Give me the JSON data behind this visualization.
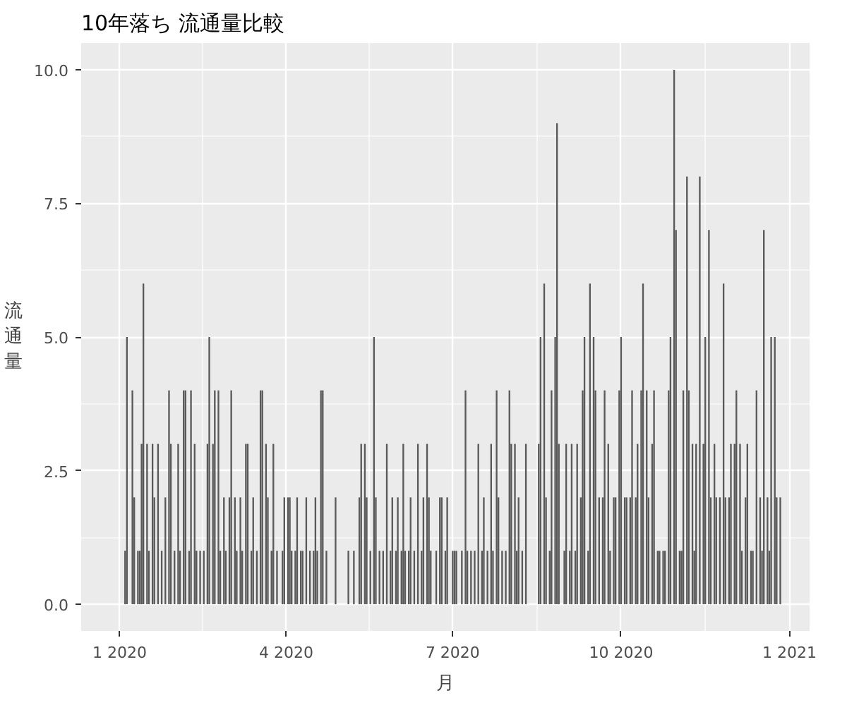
{
  "chart_data": {
    "type": "bar",
    "title": "10年落ち 流通量比較",
    "xlabel": "月",
    "ylabel": "流通量",
    "x": [
      "2020-01-04",
      "2020-01-05",
      "2020-01-08",
      "2020-01-09",
      "2020-01-11",
      "2020-01-12",
      "2020-01-13",
      "2020-01-14",
      "2020-01-16",
      "2020-01-17",
      "2020-01-19",
      "2020-01-20",
      "2020-01-22",
      "2020-01-24",
      "2020-01-26",
      "2020-01-28",
      "2020-01-29",
      "2020-01-31",
      "2020-02-02",
      "2020-02-03",
      "2020-02-05",
      "2020-02-06",
      "2020-02-08",
      "2020-02-09",
      "2020-02-11",
      "2020-02-12",
      "2020-02-14",
      "2020-02-16",
      "2020-02-18",
      "2020-02-19",
      "2020-02-21",
      "2020-02-22",
      "2020-02-24",
      "2020-02-25",
      "2020-02-27",
      "2020-02-28",
      "2020-03-01",
      "2020-03-02",
      "2020-03-04",
      "2020-03-05",
      "2020-03-07",
      "2020-03-08",
      "2020-03-10",
      "2020-03-11",
      "2020-03-13",
      "2020-03-14",
      "2020-03-16",
      "2020-03-18",
      "2020-03-19",
      "2020-03-21",
      "2020-03-22",
      "2020-03-24",
      "2020-03-25",
      "2020-03-27",
      "2020-03-30",
      "2020-03-31",
      "2020-04-02",
      "2020-04-03",
      "2020-04-04",
      "2020-04-06",
      "2020-04-07",
      "2020-04-09",
      "2020-04-10",
      "2020-04-12",
      "2020-04-14",
      "2020-04-16",
      "2020-04-17",
      "2020-04-18",
      "2020-04-20",
      "2020-04-21",
      "2020-04-23",
      "2020-04-28",
      "2020-05-05",
      "2020-05-08",
      "2020-05-11",
      "2020-05-12",
      "2020-05-14",
      "2020-05-15",
      "2020-05-17",
      "2020-05-19",
      "2020-05-20",
      "2020-05-22",
      "2020-05-24",
      "2020-05-26",
      "2020-05-28",
      "2020-05-29",
      "2020-05-31",
      "2020-06-01",
      "2020-06-03",
      "2020-06-04",
      "2020-06-05",
      "2020-06-07",
      "2020-06-08",
      "2020-06-10",
      "2020-06-12",
      "2020-06-14",
      "2020-06-15",
      "2020-06-17",
      "2020-06-18",
      "2020-06-19",
      "2020-06-22",
      "2020-06-24",
      "2020-06-25",
      "2020-06-27",
      "2020-06-28",
      "2020-07-01",
      "2020-07-02",
      "2020-07-03",
      "2020-07-06",
      "2020-07-08",
      "2020-07-09",
      "2020-07-11",
      "2020-07-13",
      "2020-07-15",
      "2020-07-17",
      "2020-07-18",
      "2020-07-20",
      "2020-07-22",
      "2020-07-23",
      "2020-07-25",
      "2020-07-26",
      "2020-07-28",
      "2020-07-30",
      "2020-08-01",
      "2020-08-02",
      "2020-08-04",
      "2020-08-05",
      "2020-08-06",
      "2020-08-08",
      "2020-08-10",
      "2020-08-17",
      "2020-08-18",
      "2020-08-20",
      "2020-08-21",
      "2020-08-23",
      "2020-08-24",
      "2020-08-26",
      "2020-08-27",
      "2020-08-28",
      "2020-08-31",
      "2020-09-01",
      "2020-09-03",
      "2020-09-04",
      "2020-09-06",
      "2020-09-07",
      "2020-09-09",
      "2020-09-10",
      "2020-09-11",
      "2020-09-13",
      "2020-09-14",
      "2020-09-16",
      "2020-09-17",
      "2020-09-19",
      "2020-09-21",
      "2020-09-22",
      "2020-09-24",
      "2020-09-25",
      "2020-09-27",
      "2020-09-28",
      "2020-09-30",
      "2020-10-01",
      "2020-10-03",
      "2020-10-04",
      "2020-10-06",
      "2020-10-07",
      "2020-10-09",
      "2020-10-10",
      "2020-10-12",
      "2020-10-13",
      "2020-10-15",
      "2020-10-16",
      "2020-10-18",
      "2020-10-19",
      "2020-10-21",
      "2020-10-22",
      "2020-10-24",
      "2020-10-25",
      "2020-10-27",
      "2020-10-28",
      "2020-10-30",
      "2020-10-31",
      "2020-11-02",
      "2020-11-03",
      "2020-11-04",
      "2020-11-06",
      "2020-11-07",
      "2020-11-09",
      "2020-11-10",
      "2020-11-11",
      "2020-11-13",
      "2020-11-15",
      "2020-11-16",
      "2020-11-18",
      "2020-11-19",
      "2020-11-21",
      "2020-11-22",
      "2020-11-24",
      "2020-11-26",
      "2020-11-27",
      "2020-11-29",
      "2020-11-30",
      "2020-12-02",
      "2020-12-03",
      "2020-12-05",
      "2020-12-06",
      "2020-12-08",
      "2020-12-09",
      "2020-12-11",
      "2020-12-12",
      "2020-12-14",
      "2020-12-16",
      "2020-12-17",
      "2020-12-18",
      "2020-12-20",
      "2020-12-21",
      "2020-12-22",
      "2020-12-24",
      "2020-12-25",
      "2020-12-27"
    ],
    "values": [
      1,
      5,
      4,
      2,
      1,
      1,
      3,
      6,
      3,
      1,
      3,
      2,
      3,
      1,
      2,
      4,
      3,
      1,
      3,
      1,
      4,
      4,
      1,
      4,
      3,
      1,
      1,
      1,
      3,
      5,
      3,
      4,
      4,
      1,
      2,
      1,
      2,
      4,
      2,
      1,
      2,
      1,
      3,
      3,
      1,
      2,
      1,
      4,
      4,
      3,
      2,
      1,
      3,
      1,
      1,
      2,
      2,
      2,
      1,
      1,
      2,
      1,
      1,
      2,
      1,
      1,
      2,
      1,
      4,
      4,
      1,
      2,
      1,
      1,
      2,
      3,
      3,
      2,
      1,
      5,
      2,
      1,
      1,
      3,
      1,
      2,
      1,
      2,
      1,
      3,
      1,
      1,
      2,
      1,
      3,
      1,
      2,
      3,
      2,
      1,
      1,
      2,
      2,
      1,
      2,
      1,
      1,
      1,
      1,
      4,
      1,
      1,
      1,
      3,
      1,
      2,
      1,
      3,
      1,
      4,
      2,
      1,
      1,
      4,
      3,
      3,
      1,
      2,
      1,
      3,
      3,
      5,
      6,
      2,
      1,
      4,
      5,
      9,
      3,
      1,
      3,
      1,
      3,
      1,
      3,
      2,
      4,
      5,
      1,
      6,
      5,
      4,
      2,
      2,
      4,
      3,
      1,
      2,
      2,
      4,
      5,
      2,
      2,
      2,
      4,
      2,
      3,
      4,
      6,
      4,
      2,
      3,
      4,
      1,
      1,
      1,
      1,
      4,
      5,
      10,
      7,
      1,
      1,
      4,
      8,
      4,
      3,
      1,
      3,
      8,
      3,
      5,
      7,
      2,
      3,
      2,
      2,
      6,
      2,
      2,
      3,
      3,
      4,
      3,
      1,
      2,
      3,
      1,
      1,
      4,
      2,
      1,
      7,
      2,
      1,
      5,
      5,
      2,
      2
    ],
    "color": "#595959",
    "xlim": [
      "2019-12-11",
      "2021-01-12"
    ],
    "xticks": [
      {
        "value": "2020-01-01",
        "label": "1 2020"
      },
      {
        "value": "2020-04-01",
        "label": "4 2020"
      },
      {
        "value": "2020-07-01",
        "label": "7 2020"
      },
      {
        "value": "2020-10-01",
        "label": "10 2020"
      },
      {
        "value": "2021-01-01",
        "label": "1 2021"
      }
    ],
    "ylim": [
      -0.5,
      10.5
    ],
    "yticks": [
      {
        "value": 0,
        "label": "0.0"
      },
      {
        "value": 2.5,
        "label": "2.5"
      },
      {
        "value": 5,
        "label": "5.0"
      },
      {
        "value": 7.5,
        "label": "7.5"
      },
      {
        "value": 10,
        "label": "10.0"
      }
    ],
    "grid": true
  }
}
